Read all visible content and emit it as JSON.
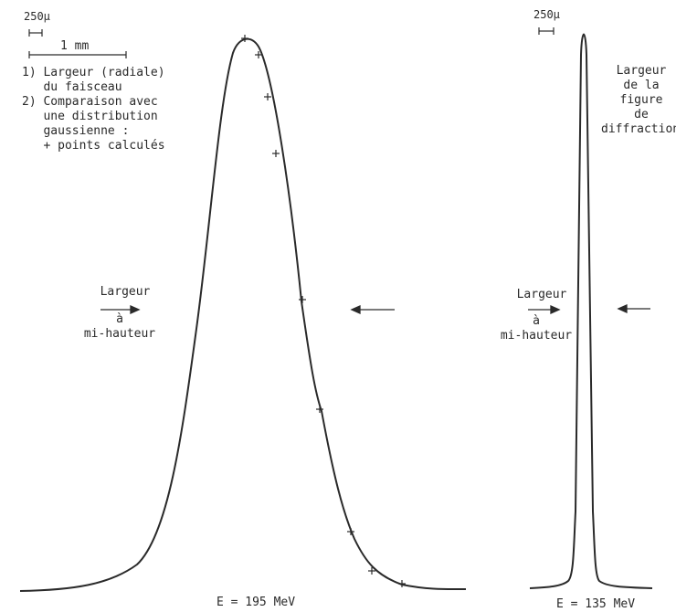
{
  "left_panel": {
    "scale_small": "250µ",
    "scale_large": "1 mm",
    "legend_items": [
      "1) Largeur (radiale)",
      "   du faisceau",
      "2) Comparaison avec",
      "   une distribution",
      "   gaussienne :",
      "   + points calculés"
    ],
    "fwhm_label_lines": [
      "Largeur",
      "à",
      "mi-hauteur"
    ],
    "energy_label": "E = 195 MeV"
  },
  "right_panel": {
    "scale_small": "250µ",
    "title_lines": [
      "Largeur",
      "de la",
      "figure",
      "de",
      "diffraction"
    ],
    "fwhm_label_lines": [
      "Largeur",
      "à",
      "mi-hauteur"
    ],
    "energy_label": "E = 135 MeV"
  },
  "colors": {
    "ink": "#2a2a2a",
    "paper": "#ffffff"
  }
}
